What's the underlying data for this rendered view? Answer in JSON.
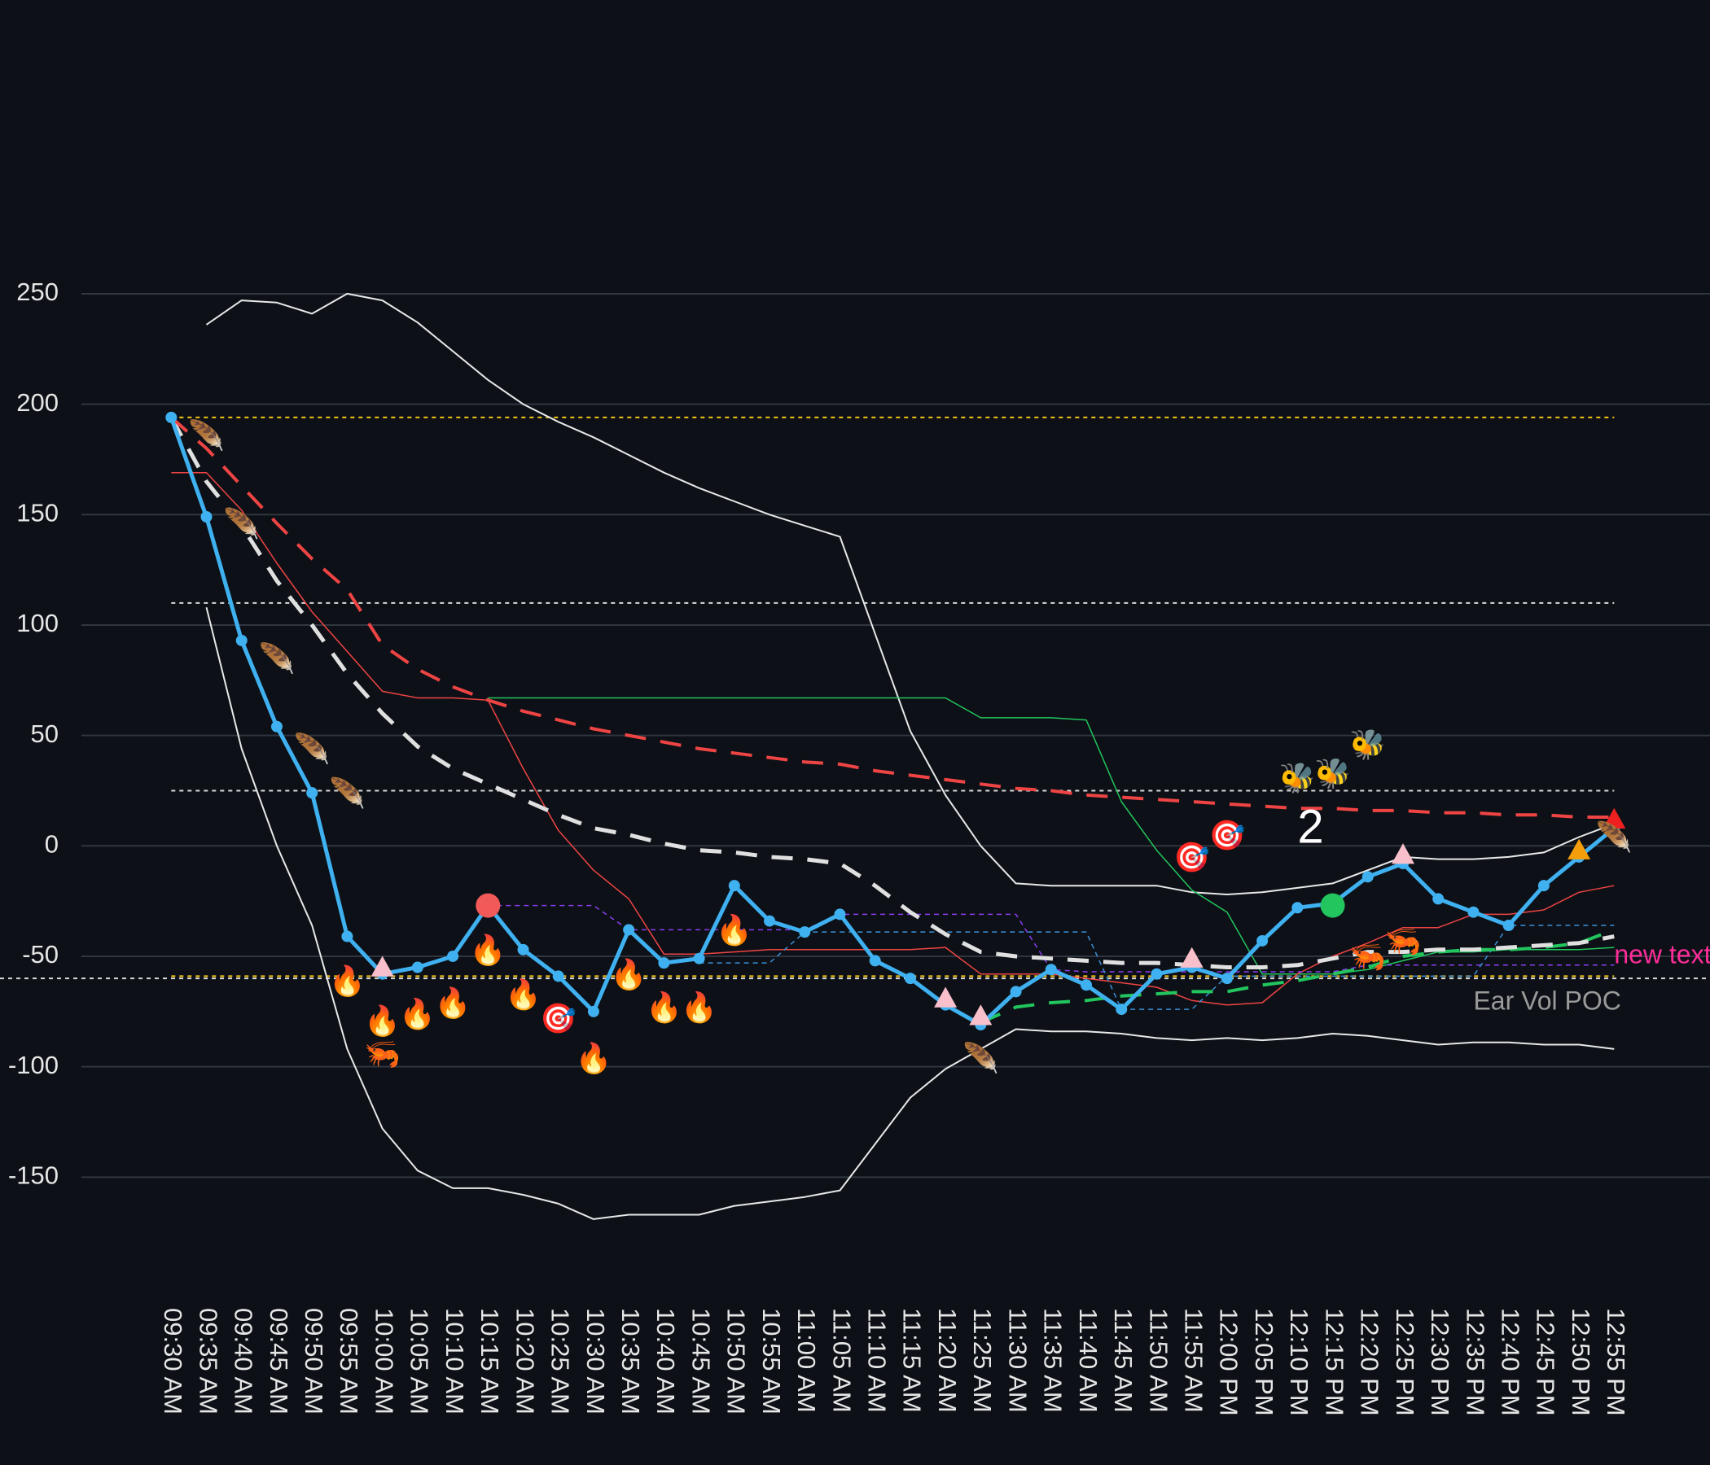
{
  "chart_data": {
    "type": "line",
    "categories": [
      "09:30 AM",
      "09:35 AM",
      "09:40 AM",
      "09:45 AM",
      "09:50 AM",
      "09:55 AM",
      "10:00 AM",
      "10:05 AM",
      "10:10 AM",
      "10:15 AM",
      "10:20 AM",
      "10:25 AM",
      "10:30 AM",
      "10:35 AM",
      "10:40 AM",
      "10:45 AM",
      "10:50 AM",
      "10:55 AM",
      "11:00 AM",
      "11:05 AM",
      "11:10 AM",
      "11:15 AM",
      "11:20 AM",
      "11:25 AM",
      "11:30 AM",
      "11:35 AM",
      "11:40 AM",
      "11:45 AM",
      "11:50 AM",
      "11:55 AM",
      "12:00 PM",
      "12:05 PM",
      "12:10 PM",
      "12:15 PM",
      "12:20 PM",
      "12:25 PM",
      "12:30 PM",
      "12:35 PM",
      "12:40 PM",
      "12:45 PM",
      "12:50 PM",
      "12:55 PM"
    ],
    "ylim": [
      -200,
      320
    ],
    "yticks": [
      -150,
      -100,
      -50,
      0,
      50,
      100,
      150,
      200,
      250
    ],
    "grid": true,
    "series": [
      {
        "color": "#e8e8e8",
        "style": "solid",
        "width": 2,
        "values": [
          null,
          236,
          247,
          246,
          241,
          250,
          247,
          237,
          224,
          211,
          200,
          192,
          185,
          177,
          169,
          162,
          156,
          150,
          145,
          140,
          96,
          52,
          23,
          0,
          -17,
          -18,
          -18,
          -18,
          -18,
          -21,
          -22,
          -21,
          -19,
          -17,
          -11,
          -5,
          -6,
          -6,
          -5,
          -3,
          4,
          10
        ]
      },
      {
        "color": "#e8e8e8",
        "style": "solid",
        "width": 2,
        "values": [
          null,
          108,
          44,
          0,
          -36,
          -92,
          -128,
          -147,
          -155,
          -155,
          -158,
          -162,
          -169,
          -167,
          -167,
          -167,
          -163,
          -161,
          -159,
          -156,
          -135,
          -114,
          -101,
          -92,
          -83,
          -84,
          -84,
          -85,
          -87,
          -88,
          -87,
          -88,
          -87,
          -85,
          -86,
          -88,
          -90,
          -89,
          -89,
          -90,
          -90,
          -92
        ]
      },
      {
        "color": "#22c55e",
        "style": "solid",
        "width": 1.5,
        "values": [
          null,
          null,
          null,
          null,
          null,
          null,
          null,
          null,
          null,
          67,
          67,
          67,
          67,
          67,
          67,
          67,
          67,
          67,
          67,
          67,
          67,
          67,
          67,
          58,
          58,
          58,
          57,
          20,
          -2,
          -20,
          -30,
          -58,
          -58,
          -58,
          -56,
          -52,
          -48,
          -48,
          -47,
          -47,
          -47,
          -46
        ]
      },
      {
        "color": "#ef4444",
        "style": "solid",
        "width": 1.5,
        "values": [
          169,
          169,
          152,
          128,
          106,
          88,
          70,
          67,
          67,
          66,
          35,
          7,
          -11,
          -24,
          -49,
          -49,
          -48,
          -47,
          -47,
          -47,
          -47,
          -47,
          -46,
          -58,
          -58,
          -58,
          -60,
          -62,
          -64,
          -70,
          -72,
          -71,
          -58,
          -50,
          -44,
          -37,
          -37,
          -31,
          -31,
          -29,
          -21,
          -18
        ]
      },
      {
        "color": "#8b3cf0",
        "style": "dashed",
        "width": 1.5,
        "values": [
          null,
          null,
          null,
          null,
          null,
          null,
          null,
          null,
          null,
          -27,
          -27,
          -27,
          -27,
          -38,
          -38,
          -38,
          -38,
          -38,
          -38,
          -31,
          -31,
          -31,
          -31,
          -31,
          -31,
          -56,
          -57,
          -57,
          -57,
          -57,
          -57,
          -57,
          -57,
          -57,
          -54,
          -54,
          -54,
          -54,
          -54,
          -54,
          -54,
          -54
        ]
      },
      {
        "color": "#3b8fd8",
        "style": "dashed",
        "width": 1.5,
        "values": [
          null,
          null,
          null,
          null,
          null,
          null,
          null,
          null,
          null,
          null,
          null,
          null,
          null,
          null,
          null,
          -53,
          -53,
          -53,
          -39,
          -39,
          -39,
          -39,
          -39,
          -39,
          -39,
          -39,
          -39,
          -74,
          -74,
          -74,
          -59,
          -59,
          -59,
          -59,
          -59,
          -59,
          -59,
          -59,
          -36,
          -36,
          -36,
          -36
        ]
      },
      {
        "color": "#22c55e",
        "style": "longdash",
        "width": 4,
        "values": [
          null,
          null,
          null,
          null,
          null,
          null,
          null,
          null,
          null,
          null,
          null,
          null,
          null,
          null,
          null,
          null,
          null,
          null,
          null,
          null,
          null,
          null,
          null,
          -80,
          -73,
          -71,
          -70,
          -68,
          -67,
          -66,
          -66,
          -63,
          -61,
          -58,
          -55,
          -50,
          -48,
          -47,
          -47,
          -46,
          -44,
          -38
        ]
      },
      {
        "color": "#e0e0e0",
        "style": "longdash",
        "width": 5,
        "values": [
          194,
          165,
          145,
          120,
          100,
          78,
          60,
          45,
          35,
          28,
          21,
          14,
          8,
          5,
          1,
          -2,
          -3,
          -5,
          -6,
          -8,
          -18,
          -30,
          -40,
          -48,
          -50,
          -51,
          -52,
          -53,
          -53,
          -54,
          -55,
          -55,
          -54,
          -51,
          -48,
          -48,
          -47,
          -47,
          -46,
          -45,
          -44,
          -41
        ]
      },
      {
        "color": "#ef4444",
        "style": "longdash",
        "width": 4,
        "values": [
          194,
          180,
          163,
          146,
          130,
          116,
          91,
          80,
          72,
          66,
          61,
          57,
          53,
          50,
          47,
          44,
          42,
          40,
          38,
          37,
          34,
          32,
          30,
          28,
          26,
          25,
          23,
          22,
          21,
          20,
          19,
          18,
          17,
          17,
          16,
          16,
          15,
          15,
          14,
          14,
          13,
          13
        ]
      },
      {
        "color": "#3fb0f0",
        "style": "solid",
        "width": 5,
        "markers": true,
        "values": [
          194,
          149,
          93,
          54,
          24,
          -41,
          -58,
          -55,
          -50,
          -27,
          -47,
          -59,
          -75,
          -38,
          -53,
          -51,
          -18,
          -34,
          -39,
          -31,
          -52,
          -60,
          -72,
          -81,
          -66,
          -56,
          -63,
          -74,
          -58,
          -55,
          -60,
          -43,
          -28,
          -26,
          -14,
          -8,
          -24,
          -30,
          -36,
          -18,
          -5,
          8
        ]
      }
    ],
    "hlines": [
      {
        "y": 194,
        "color": "#f5c518",
        "span": "data"
      },
      {
        "y": 110,
        "color": "#d8d8d8",
        "span": "data"
      },
      {
        "y": 25,
        "color": "#d8d8d8",
        "span": "data"
      },
      {
        "y": -59,
        "color": "#f5c518",
        "span": "data"
      },
      {
        "y": -60,
        "color": "#d8d8d8",
        "span": "full"
      }
    ],
    "dots": [
      {
        "at": "10:15 AM",
        "y": -27,
        "color": "#f25a5a"
      },
      {
        "at": "12:15 PM",
        "y": -27,
        "color": "#22c55e"
      }
    ],
    "triangles": [
      {
        "at": "10:00 AM",
        "y": -55,
        "color": "#f9c0cb"
      },
      {
        "at": "11:20 AM",
        "y": -69,
        "color": "#f9c0cb"
      },
      {
        "at": "11:25 AM",
        "y": -77,
        "color": "#f9c0cb"
      },
      {
        "at": "11:55 AM",
        "y": -51,
        "color": "#f9c0cb"
      },
      {
        "at": "12:25 PM",
        "y": -4,
        "color": "#f9c0cb"
      },
      {
        "at": "12:50 PM",
        "y": -2,
        "color": "#f59e0b"
      },
      {
        "at": "12:55 PM",
        "y": 12,
        "color": "#ef2020"
      }
    ],
    "emojis": [
      {
        "symbol": "🔥",
        "at": "09:55 AM",
        "y": -62
      },
      {
        "symbol": "🔥",
        "at": "10:00 AM",
        "y": -80
      },
      {
        "symbol": "🔥",
        "at": "10:05 AM",
        "y": -77
      },
      {
        "symbol": "🔥",
        "at": "10:10 AM",
        "y": -72
      },
      {
        "symbol": "🔥",
        "at": "10:15 AM",
        "y": -48
      },
      {
        "symbol": "🔥",
        "at": "10:20 AM",
        "y": -68
      },
      {
        "symbol": "🔥",
        "at": "10:30 AM",
        "y": -97
      },
      {
        "symbol": "🔥",
        "at": "10:35 AM",
        "y": -59
      },
      {
        "symbol": "🔥",
        "at": "10:40 AM",
        "y": -74
      },
      {
        "symbol": "🔥",
        "at": "10:45 AM",
        "y": -74
      },
      {
        "symbol": "🔥",
        "at": "10:50 AM",
        "y": -39
      },
      {
        "symbol": "🪶",
        "at": "09:35 AM",
        "y": 185
      },
      {
        "symbol": "🪶",
        "at": "09:40 AM",
        "y": 145
      },
      {
        "symbol": "🪶",
        "at": "09:45 AM",
        "y": 84
      },
      {
        "symbol": "🪶",
        "at": "09:50 AM",
        "y": 43
      },
      {
        "symbol": "🪶",
        "at": "09:55 AM",
        "y": 23
      },
      {
        "symbol": "🪶",
        "at": "11:25 AM",
        "y": -97
      },
      {
        "symbol": "🪶",
        "at": "12:55 PM",
        "y": 3
      },
      {
        "symbol": "🎯",
        "at": "10:25 AM",
        "y": -79
      },
      {
        "symbol": "🎯",
        "at": "11:55 AM",
        "y": -6
      },
      {
        "symbol": "🎯",
        "at": "12:00 PM",
        "y": 4
      },
      {
        "symbol": "🐝",
        "at": "12:10 PM",
        "y": 30
      },
      {
        "symbol": "🐝",
        "at": "12:15 PM",
        "y": 32
      },
      {
        "symbol": "🐝",
        "at": "12:20 PM",
        "y": 45
      },
      {
        "symbol": "🦐",
        "at": "10:00 AM",
        "y": -95
      },
      {
        "symbol": "🦐",
        "at": "12:20 PM",
        "y": -51
      },
      {
        "symbol": "🦐",
        "at": "12:25 PM",
        "y": -44
      }
    ],
    "annotations": [
      {
        "text": "2",
        "at": "12:10 PM",
        "y": 7,
        "color": "#ffffff",
        "size": 58
      },
      {
        "text": "new text",
        "at": "12:55 PM",
        "y": -50,
        "color": "#ff2d9a",
        "size": 32
      },
      {
        "text": "Ear Vol POC",
        "at": "12:35 PM",
        "y": -71,
        "color": "#9a9a9a",
        "size": 32
      }
    ]
  }
}
